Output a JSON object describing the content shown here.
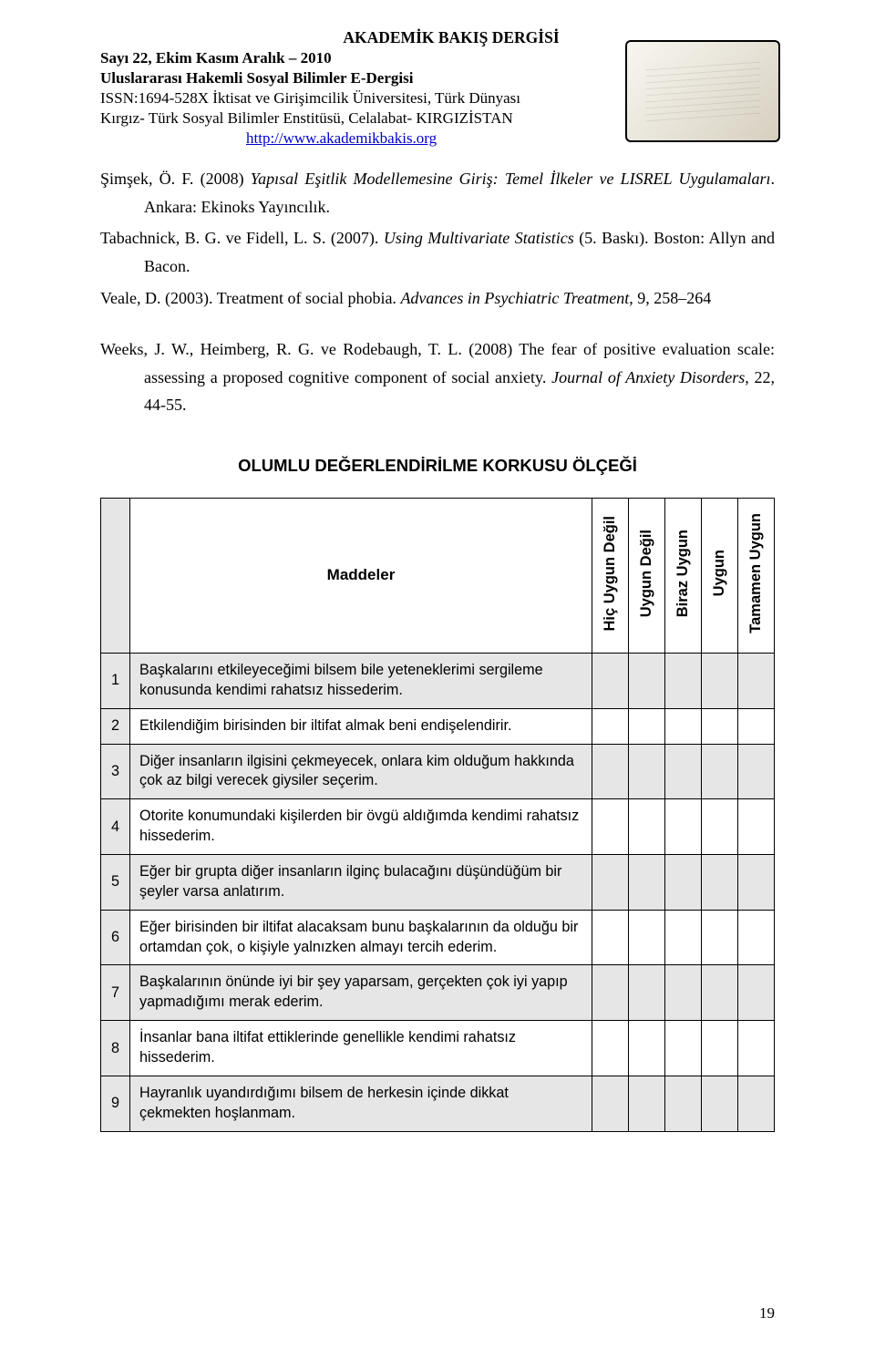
{
  "header": {
    "title": "AKADEMİK BAKIŞ DERGİSİ",
    "issue": "Sayı 22, Ekim  Kasım  Aralık – 2010",
    "subtitle": "Uluslararası Hakemli Sosyal Bilimler E-Dergisi",
    "issn_line": "ISSN:1694-528X İktisat ve Girişimcilik Üniversitesi, Türk Dünyası",
    "institute_line": "Kırgız- Türk Sosyal Bilimler Enstitüsü, Celalabat- KIRGIZİSTAN",
    "url": "http://www.akademikbakis.org"
  },
  "references": [
    {
      "prefix": "Şimşek, Ö. F. (2008) ",
      "italic1": "Yapısal Eşitlik Modellemesine Giriş: Temel İlkeler ve LISREL Uygulamaları",
      "suffix1": ". Ankara: Ekinoks Yayıncılık."
    },
    {
      "prefix": "Tabachnick, B. G. ve Fidell, L. S. (2007). ",
      "italic1": "Using Multivariate Statistics",
      "suffix1": " (5. Baskı). Boston: Allyn and Bacon."
    },
    {
      "prefix": "Veale, D. (2003). Treatment of social phobia. ",
      "italic1": "Advances in Psychiatric Treatment",
      "suffix1": ", 9, 258–264"
    },
    {
      "prefix": "Weeks, J. W., Heimberg, R. G. ve Rodebaugh, T. L. (2008) The fear of positive evaluation scale: assessing a proposed cognitive component of social anxiety. ",
      "italic1": "Journal of Anxiety Disorders",
      "suffix1": ", 22, 44-55."
    }
  ],
  "section_heading": "OLUMLU DEĞERLENDİRİLME KORKUSU ÖLÇEĞİ",
  "table": {
    "header_item": "Maddeler",
    "scale_labels": [
      "Hiç Uygun Değil",
      "Uygun Değil",
      "Biraz Uygun",
      "Uygun",
      "Tamamen Uygun"
    ],
    "rows": [
      {
        "num": "1",
        "text": "Başkalarını etkileyeceğimi bilsem bile yeteneklerimi sergileme konusunda kendimi rahatsız hissederim.",
        "shaded": true
      },
      {
        "num": "2",
        "text": "Etkilendiğim birisinden bir iltifat almak beni endişelendirir.",
        "shaded": false
      },
      {
        "num": "3",
        "text": "Diğer insanların ilgisini çekmeyecek, onlara kim olduğum hakkında çok az bilgi verecek giysiler seçerim.",
        "shaded": true
      },
      {
        "num": "4",
        "text": "Otorite konumundaki kişilerden bir övgü aldığımda kendimi rahatsız hissederim.",
        "shaded": false
      },
      {
        "num": "5",
        "text": "Eğer bir grupta diğer insanların ilginç bulacağını düşündüğüm bir şeyler varsa anlatırım.",
        "shaded": true
      },
      {
        "num": "6",
        "text": "Eğer birisinden bir iltifat alacaksam bunu başkalarının da olduğu bir ortamdan çok, o kişiyle yalnızken almayı tercih ederim.",
        "shaded": false
      },
      {
        "num": "7",
        "text": "Başkalarının önünde iyi bir şey yaparsam, gerçekten çok iyi yapıp yapmadığımı merak ederim.",
        "shaded": true
      },
      {
        "num": "8",
        "text": "İnsanlar bana iltifat ettiklerinde genellikle kendimi rahatsız hissederim.",
        "shaded": false
      },
      {
        "num": "9",
        "text": "Hayranlık uyandırdığımı bilsem de herkesin içinde dikkat çekmekten hoşlanmam.",
        "shaded": true
      }
    ]
  },
  "colors": {
    "shaded_bg": "#e6e6e6",
    "link_color": "#0000cc",
    "text_color": "#000000",
    "page_bg": "#ffffff"
  },
  "page_number": "19"
}
